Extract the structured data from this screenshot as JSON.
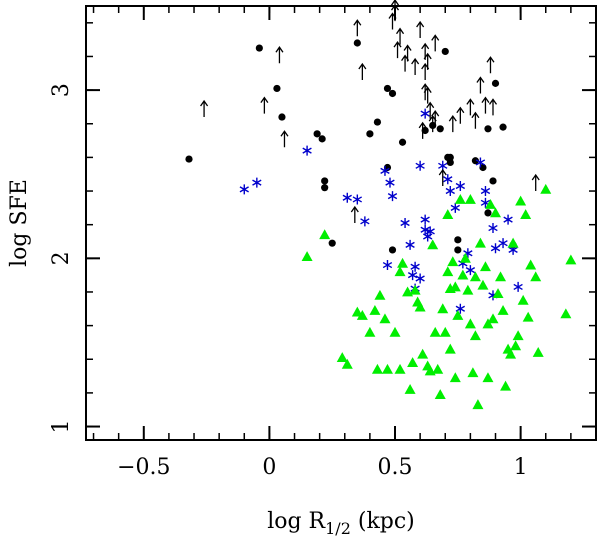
{
  "chart_data": {
    "type": "scatter",
    "title": "",
    "xlabel": "log R",
    "xlabel_sub": "1/2",
    "xlabel_unit": " (kpc)",
    "ylabel": "log SFE",
    "xlim": [
      -0.73,
      1.3
    ],
    "ylim": [
      0.92,
      3.5
    ],
    "x_ticks": [
      {
        "value": -0.5,
        "label": "−0.5"
      },
      {
        "value": 0,
        "label": "0"
      },
      {
        "value": 0.5,
        "label": "0.5"
      },
      {
        "value": 1,
        "label": "1"
      }
    ],
    "y_ticks": [
      {
        "value": 1,
        "label": "1"
      },
      {
        "value": 2,
        "label": "2"
      },
      {
        "value": 3,
        "label": "3"
      }
    ],
    "x_minor_step": 0.1,
    "y_minor_step": 0.2,
    "series": [
      {
        "name": "filled circles",
        "marker": "circle",
        "color": "#000000",
        "points": [
          [
            -0.32,
            2.59
          ],
          [
            -0.04,
            3.25
          ],
          [
            0.03,
            3.01
          ],
          [
            0.05,
            2.84
          ],
          [
            0.19,
            2.74
          ],
          [
            0.21,
            2.71
          ],
          [
            0.22,
            2.46
          ],
          [
            0.22,
            2.42
          ],
          [
            0.25,
            2.09
          ],
          [
            0.35,
            3.28
          ],
          [
            0.4,
            2.74
          ],
          [
            0.43,
            2.81
          ],
          [
            0.47,
            3.01
          ],
          [
            0.49,
            2.98
          ],
          [
            0.47,
            2.54
          ],
          [
            0.53,
            2.69
          ],
          [
            0.49,
            2.05
          ],
          [
            0.62,
            2.76
          ],
          [
            0.65,
            2.79
          ],
          [
            0.68,
            2.77
          ],
          [
            0.7,
            3.23
          ],
          [
            0.71,
            2.6
          ],
          [
            0.72,
            2.6
          ],
          [
            0.72,
            2.57
          ],
          [
            0.75,
            2.11
          ],
          [
            0.75,
            2.05
          ],
          [
            0.82,
            2.58
          ],
          [
            0.85,
            2.54
          ],
          [
            0.87,
            2.77
          ],
          [
            0.9,
            3.04
          ],
          [
            0.89,
            2.46
          ],
          [
            0.93,
            2.78
          ],
          [
            0.87,
            2.27
          ],
          [
            0.97,
            2.08
          ]
        ]
      },
      {
        "name": "asterisks",
        "marker": "asterisk",
        "color": "#0000cc",
        "points": [
          [
            -0.1,
            2.41
          ],
          [
            -0.05,
            2.45
          ],
          [
            0.15,
            2.64
          ],
          [
            0.31,
            2.36
          ],
          [
            0.35,
            2.35
          ],
          [
            0.38,
            2.22
          ],
          [
            0.46,
            2.52
          ],
          [
            0.48,
            2.45
          ],
          [
            0.49,
            2.37
          ],
          [
            0.54,
            2.21
          ],
          [
            0.56,
            2.08
          ],
          [
            0.58,
            1.95
          ],
          [
            0.47,
            1.96
          ],
          [
            0.57,
            1.9
          ],
          [
            0.6,
            1.88
          ],
          [
            0.58,
            1.82
          ],
          [
            0.62,
            2.23
          ],
          [
            0.62,
            2.17
          ],
          [
            0.63,
            2.13
          ],
          [
            0.64,
            2.16
          ],
          [
            0.62,
            2.86
          ],
          [
            0.6,
            2.55
          ],
          [
            0.69,
            2.55
          ],
          [
            0.71,
            2.47
          ],
          [
            0.72,
            2.4
          ],
          [
            0.74,
            2.3
          ],
          [
            0.76,
            2.43
          ],
          [
            0.77,
            1.97
          ],
          [
            0.79,
            2.03
          ],
          [
            0.8,
            1.93
          ],
          [
            0.84,
            2.57
          ],
          [
            0.86,
            2.4
          ],
          [
            0.86,
            2.33
          ],
          [
            0.89,
            2.18
          ],
          [
            0.9,
            2.06
          ],
          [
            0.93,
            2.09
          ],
          [
            0.97,
            2.05
          ],
          [
            0.95,
            2.23
          ],
          [
            0.99,
            1.83
          ],
          [
            0.76,
            1.7
          ],
          [
            0.89,
            1.78
          ]
        ]
      },
      {
        "name": "filled triangles",
        "marker": "triangle",
        "color": "#00ee00",
        "points": [
          [
            0.15,
            2.01
          ],
          [
            0.22,
            2.14
          ],
          [
            0.29,
            1.41
          ],
          [
            0.31,
            1.37
          ],
          [
            0.37,
            1.66
          ],
          [
            0.4,
            1.56
          ],
          [
            0.42,
            1.69
          ],
          [
            0.44,
            1.78
          ],
          [
            0.46,
            1.64
          ],
          [
            0.47,
            1.34
          ],
          [
            0.5,
            1.56
          ],
          [
            0.52,
            1.34
          ],
          [
            0.52,
            1.92
          ],
          [
            0.55,
            1.8
          ],
          [
            0.56,
            1.22
          ],
          [
            0.57,
            1.38
          ],
          [
            0.58,
            1.81
          ],
          [
            0.59,
            1.74
          ],
          [
            0.6,
            1.71
          ],
          [
            0.61,
            1.43
          ],
          [
            0.63,
            1.36
          ],
          [
            0.64,
            1.33
          ],
          [
            0.66,
            1.56
          ],
          [
            0.67,
            1.34
          ],
          [
            0.68,
            1.19
          ],
          [
            0.69,
            1.7
          ],
          [
            0.7,
            1.56
          ],
          [
            0.71,
            1.92
          ],
          [
            0.72,
            1.82
          ],
          [
            0.72,
            1.46
          ],
          [
            0.73,
            1.98
          ],
          [
            0.74,
            1.83
          ],
          [
            0.74,
            1.29
          ],
          [
            0.75,
            1.66
          ],
          [
            0.76,
            2.35
          ],
          [
            0.77,
            1.9
          ],
          [
            0.78,
            2.0
          ],
          [
            0.79,
            1.81
          ],
          [
            0.8,
            1.61
          ],
          [
            0.81,
            1.32
          ],
          [
            0.82,
            1.89
          ],
          [
            0.82,
            1.54
          ],
          [
            0.83,
            1.13
          ],
          [
            0.84,
            2.09
          ],
          [
            0.85,
            1.84
          ],
          [
            0.86,
            1.95
          ],
          [
            0.87,
            1.61
          ],
          [
            0.87,
            1.29
          ],
          [
            0.88,
            2.32
          ],
          [
            0.89,
            1.64
          ],
          [
            0.9,
            2.27
          ],
          [
            0.91,
            1.79
          ],
          [
            0.92,
            1.89
          ],
          [
            0.93,
            1.69
          ],
          [
            0.94,
            1.24
          ],
          [
            0.95,
            1.46
          ],
          [
            0.96,
            1.43
          ],
          [
            0.97,
            2.09
          ],
          [
            0.98,
            1.48
          ],
          [
            0.99,
            1.54
          ],
          [
            1.0,
            2.34
          ],
          [
            1.01,
            1.75
          ],
          [
            1.02,
            2.26
          ],
          [
            1.03,
            1.65
          ],
          [
            1.04,
            1.96
          ],
          [
            1.06,
            1.89
          ],
          [
            1.07,
            1.44
          ],
          [
            1.1,
            2.41
          ],
          [
            1.18,
            1.67
          ],
          [
            1.2,
            1.99
          ],
          [
            0.43,
            1.34
          ],
          [
            0.35,
            1.68
          ],
          [
            0.53,
            1.97
          ],
          [
            0.65,
            2.08
          ],
          [
            0.71,
            2.26
          ],
          [
            0.8,
            2.35
          ]
        ]
      },
      {
        "name": "upward arrows",
        "marker": "arrow-up",
        "color": "#000000",
        "points": [
          [
            -0.26,
            2.84
          ],
          [
            -0.02,
            2.86
          ],
          [
            0.04,
            3.16
          ],
          [
            0.06,
            2.66
          ],
          [
            0.35,
            3.32
          ],
          [
            0.37,
            3.06
          ],
          [
            0.34,
            2.21
          ],
          [
            0.49,
            3.36
          ],
          [
            0.5,
            3.41
          ],
          [
            0.5,
            3.44
          ],
          [
            0.51,
            3.19
          ],
          [
            0.52,
            3.27
          ],
          [
            0.54,
            3.11
          ],
          [
            0.55,
            3.17
          ],
          [
            0.58,
            3.09
          ],
          [
            0.6,
            3.31
          ],
          [
            0.62,
            3.18
          ],
          [
            0.63,
            3.12
          ],
          [
            0.63,
            2.92
          ],
          [
            0.64,
            2.83
          ],
          [
            0.66,
            2.78
          ],
          [
            0.61,
            2.71
          ],
          [
            0.62,
            2.94
          ],
          [
            0.69,
            2.43
          ],
          [
            0.73,
            2.75
          ],
          [
            0.76,
            2.8
          ],
          [
            0.8,
            2.85
          ],
          [
            0.82,
            2.77
          ],
          [
            0.84,
            2.98
          ],
          [
            0.86,
            2.86
          ],
          [
            0.88,
            3.1
          ],
          [
            0.89,
            2.85
          ],
          [
            1.06,
            2.4
          ],
          [
            0.65,
            2.75
          ],
          [
            0.66,
            3.23
          ],
          [
            0.62,
            3.06
          ]
        ]
      }
    ]
  }
}
